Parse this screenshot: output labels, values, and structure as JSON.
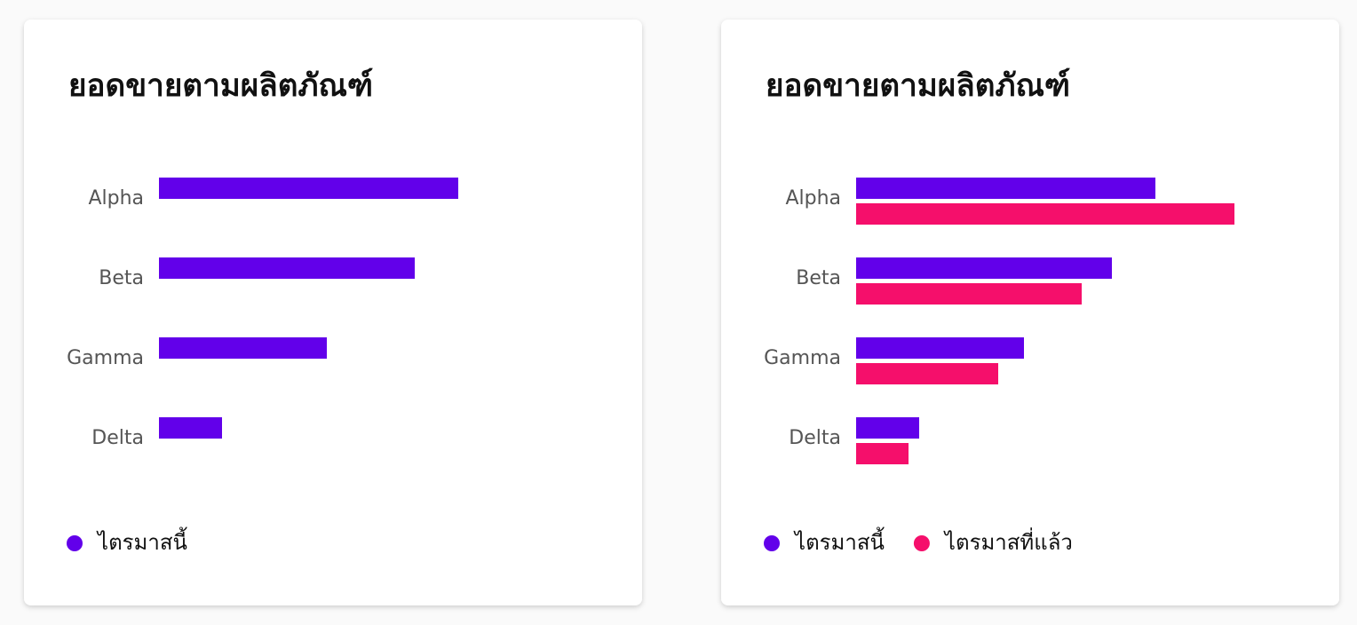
{
  "chart_data": [
    {
      "type": "bar",
      "orientation": "horizontal",
      "title": "ยอดขายตามผลิตภัณฑ์",
      "categories": [
        "Alpha",
        "Beta",
        "Gamma",
        "Delta"
      ],
      "series": [
        {
          "name": "ไตรมาสนี้",
          "color": "#6200ea",
          "values": [
            337,
            288,
            189,
            71
          ]
        }
      ],
      "xlim": [
        0,
        500
      ],
      "legend": "bottom"
    },
    {
      "type": "bar",
      "orientation": "horizontal",
      "title": "ยอดขายตามผลิตภัณฑ์",
      "categories": [
        "Alpha",
        "Beta",
        "Gamma",
        "Delta"
      ],
      "series": [
        {
          "name": "ไตรมาสนี้",
          "color": "#6200ea",
          "values": [
            337,
            288,
            189,
            71
          ]
        },
        {
          "name": "ไตรมาสที่แล้ว",
          "color": "#f50f6b",
          "values": [
            426,
            254,
            160,
            59
          ]
        }
      ],
      "xlim": [
        0,
        500
      ],
      "legend": "bottom"
    }
  ]
}
